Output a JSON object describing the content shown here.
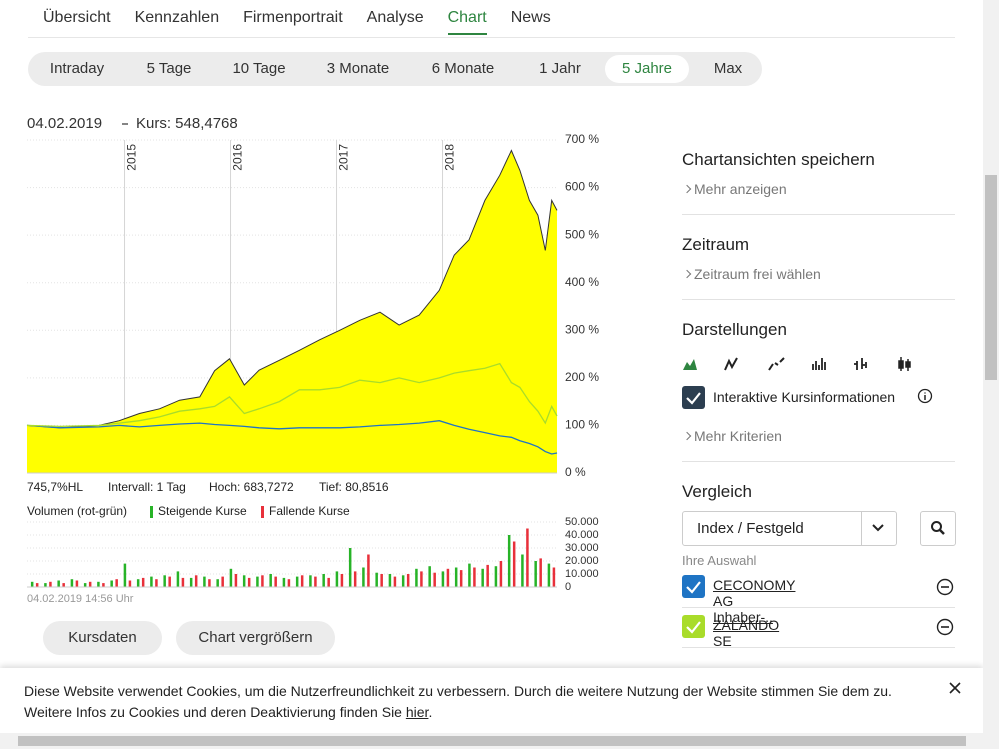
{
  "nav": {
    "tabs": [
      "Übersicht",
      "Kennzahlen",
      "Firmenportrait",
      "Analyse",
      "Chart",
      "News"
    ],
    "active": 4
  },
  "ranges": {
    "items": [
      "Intraday",
      "5 Tage",
      "10 Tage",
      "3 Monate",
      "6 Monate",
      "1 Jahr",
      "5 Jahre",
      "Max"
    ],
    "active": 6
  },
  "chart_data": [
    {
      "type": "area-line",
      "title": "04.02.2019",
      "subtitle": "Kurs: 548,4768",
      "stats": [
        "745,7%HL",
        "Intervall: 1 Tag",
        "Hoch: 683,7272",
        "Tief: 80,8516"
      ],
      "x": [
        2014.08,
        2014.39,
        2014.76,
        2014.95,
        2015.14,
        2015.33,
        2015.52,
        2015.71,
        2015.85,
        2015.99,
        2016.13,
        2016.27,
        2016.46,
        2016.65,
        2016.84,
        2017.03,
        2017.22,
        2017.41,
        2017.59,
        2017.78,
        2017.97,
        2018.11,
        2018.25,
        2018.4,
        2018.54,
        2018.65,
        2018.73,
        2018.82,
        2018.9,
        2018.97,
        2019.03,
        2019.08
      ],
      "xlim": [
        2014.08,
        2019.08
      ],
      "xticks": [
        2015,
        2016,
        2017,
        2018
      ],
      "ylim": [
        0,
        700
      ],
      "yticks": [
        {
          "value": 0,
          "label": "0 %"
        },
        {
          "value": 100,
          "label": "100 %"
        },
        {
          "value": 200,
          "label": "200 %"
        },
        {
          "value": 300,
          "label": "300 %"
        },
        {
          "value": 400,
          "label": "400 %"
        },
        {
          "value": 500,
          "label": "500 %"
        },
        {
          "value": 600,
          "label": "600 %"
        },
        {
          "value": 700,
          "label": "700 %"
        }
      ],
      "grid": true,
      "series": [
        {
          "color": "#ffff00",
          "values": [
            100,
            95,
            100,
            110,
            125,
            135,
            153,
            160,
            215,
            240,
            185,
            216,
            237,
            258,
            280,
            300,
            321,
            338,
            311,
            332,
            384,
            458,
            490,
            573,
            626,
            678,
            636,
            573,
            542,
            468,
            573,
            552
          ]
        },
        {
          "name": "CECONOMY AG Inhaber-..",
          "color": "#1f74c4",
          "values": [
            100,
            95,
            97,
            100,
            97,
            100,
            103,
            105,
            102,
            100,
            98,
            95,
            93,
            95,
            95,
            95,
            97,
            100,
            102,
            105,
            110,
            100,
            92,
            85,
            78,
            75,
            68,
            62,
            55,
            45,
            40,
            42
          ]
        },
        {
          "name": "ZALANDO SE",
          "color": "#a9dc2a",
          "values": [
            100,
            98,
            100,
            105,
            110,
            118,
            130,
            135,
            140,
            160,
            125,
            135,
            150,
            175,
            175,
            180,
            195,
            190,
            200,
            190,
            200,
            210,
            215,
            220,
            230,
            190,
            180,
            150,
            130,
            105,
            140,
            120
          ]
        }
      ]
    },
    {
      "type": "bar",
      "title": "Volumen (rot-grün)",
      "footnote": "04.02.2019 14:56 Uhr",
      "x": [
        2014.15,
        2014.275,
        2014.4,
        2014.525,
        2014.65,
        2014.775,
        2014.9,
        2015.025,
        2015.15,
        2015.275,
        2015.4,
        2015.525,
        2015.65,
        2015.775,
        2015.9,
        2016.025,
        2016.15,
        2016.275,
        2016.4,
        2016.525,
        2016.65,
        2016.775,
        2016.9,
        2017.025,
        2017.15,
        2017.275,
        2017.4,
        2017.525,
        2017.65,
        2017.775,
        2017.9,
        2018.025,
        2018.15,
        2018.275,
        2018.4,
        2018.525,
        2018.65,
        2018.775,
        2018.9,
        2019.025
      ],
      "xlim": [
        2014.08,
        2019.08
      ],
      "ylim": [
        0,
        50000
      ],
      "yticks": [
        0,
        {
          "value": 10000,
          "label": "10.000"
        },
        {
          "value": 20000,
          "label": "20.000"
        },
        {
          "value": 30000,
          "label": "30.000"
        },
        {
          "value": 40000,
          "label": "40.000"
        },
        {
          "value": 50000,
          "label": "50.000"
        }
      ],
      "series": [
        {
          "name": "Steigende Kurse",
          "color": "#27b327",
          "values": [
            4000,
            3000,
            5000,
            6000,
            3000,
            4000,
            5000,
            18000,
            6000,
            8000,
            9000,
            12000,
            7000,
            8000,
            6000,
            14000,
            9000,
            8000,
            10000,
            7000,
            8000,
            9000,
            10000,
            12000,
            30000,
            15000,
            11000,
            10000,
            9000,
            14000,
            16000,
            12000,
            15000,
            18000,
            14000,
            16000,
            40000,
            25000,
            20000,
            18000
          ]
        },
        {
          "name": "Fallende Kurse",
          "color": "#e8303a",
          "values": [
            3000,
            4000,
            3000,
            5000,
            4000,
            3000,
            6000,
            5000,
            7000,
            6000,
            8000,
            7000,
            9000,
            6000,
            8000,
            10000,
            7000,
            9000,
            8000,
            6000,
            9000,
            8000,
            7000,
            10000,
            12000,
            25000,
            10000,
            8000,
            10000,
            12000,
            11000,
            14000,
            13000,
            15000,
            17000,
            20000,
            35000,
            45000,
            22000,
            15000
          ]
        }
      ]
    }
  ],
  "buttons": [
    "Kursdaten",
    "Chart vergrößern"
  ],
  "sidebar": {
    "save": {
      "title": "Chartansichten speichern",
      "link": "Mehr anzeigen"
    },
    "period": {
      "title": "Zeitraum",
      "link": "Zeitraum frei wählen"
    },
    "display": {
      "title": "Darstellungen",
      "checkbox": "Interaktive Kursinformationen",
      "link": "Mehr Kriterien"
    },
    "compare": {
      "title": "Vergleich",
      "select": "Index / Festgeld",
      "selection_label": "Ihre Auswahl"
    }
  },
  "cookie": {
    "text": "Diese Website verwendet Cookies, um die Nutzerfreundlichkeit zu verbessern. Durch die weitere Nutzung der Website stimmen Sie dem zu. Weitere Infos zu Cookies und deren Deaktivierung finden Sie",
    "link": "hier",
    "end": "."
  }
}
